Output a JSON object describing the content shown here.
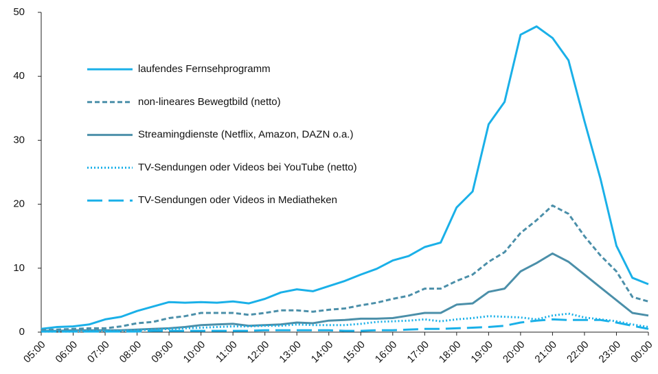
{
  "chart_data": {
    "type": "line",
    "categories": [
      "05:00",
      null,
      "06:00",
      null,
      "07:00",
      null,
      "08:00",
      null,
      "09:00",
      null,
      "10:00",
      null,
      "11:00",
      null,
      "12:00",
      null,
      "13:00",
      null,
      "14:00",
      null,
      "15:00",
      null,
      "16:00",
      null,
      "17:00",
      null,
      "18:00",
      null,
      "19:00",
      null,
      "20:00",
      null,
      "21:00",
      null,
      "22:00",
      null,
      "23:00",
      null,
      "00:00"
    ],
    "series": [
      {
        "name": "laufendes Fernsehprogramm",
        "color": "#1ab0e8",
        "dash": "solid",
        "values": [
          0.5,
          0.8,
          0.9,
          1.2,
          2.0,
          2.4,
          3.3,
          4.0,
          4.7,
          4.6,
          4.7,
          4.6,
          4.8,
          4.5,
          5.2,
          6.2,
          6.7,
          6.4,
          7.2,
          8.0,
          9.0,
          9.9,
          11.2,
          11.9,
          13.3,
          14.0,
          19.5,
          22.0,
          32.5,
          36.0,
          46.5,
          47.8,
          46.0,
          42.5,
          33.0,
          24.0,
          13.5,
          8.5,
          7.5
        ]
      },
      {
        "name": "non-lineares Bewegtbild (netto)",
        "color": "#4b8fa9",
        "dash": "dashed",
        "values": [
          0.3,
          0.4,
          0.5,
          0.6,
          0.6,
          0.9,
          1.4,
          1.6,
          2.2,
          2.5,
          3.0,
          3.0,
          3.0,
          2.7,
          3.0,
          3.4,
          3.4,
          3.2,
          3.5,
          3.7,
          4.2,
          4.6,
          5.2,
          5.7,
          6.8,
          6.8,
          8.0,
          9.0,
          11.0,
          12.5,
          15.5,
          17.5,
          19.8,
          18.5,
          15.0,
          12.0,
          9.5,
          5.5,
          4.8
        ]
      },
      {
        "name": "Streamingdienste (Netflix, Amazon, DAZN o.a.)",
        "color": "#4b8fa9",
        "dash": "solid",
        "values": [
          0.2,
          0.2,
          0.3,
          0.3,
          0.3,
          0.3,
          0.4,
          0.5,
          0.6,
          0.8,
          1.1,
          1.2,
          1.3,
          1.0,
          1.1,
          1.2,
          1.5,
          1.4,
          1.8,
          1.9,
          2.1,
          2.1,
          2.2,
          2.6,
          3.0,
          3.0,
          4.3,
          4.5,
          6.3,
          6.8,
          9.5,
          10.8,
          12.3,
          11.0,
          9.0,
          7.0,
          5.0,
          3.0,
          2.6
        ]
      },
      {
        "name": "TV-Sendungen oder Videos bei YouTube (netto)",
        "color": "#1ab0e8",
        "dash": "dotted",
        "values": [
          0.1,
          0.1,
          0.1,
          0.2,
          0.2,
          0.2,
          0.3,
          0.4,
          0.5,
          0.6,
          0.7,
          0.8,
          0.9,
          0.9,
          1.0,
          1.0,
          1.2,
          1.1,
          1.1,
          1.1,
          1.3,
          1.6,
          1.7,
          1.8,
          2.0,
          1.7,
          2.0,
          2.2,
          2.5,
          2.4,
          2.3,
          2.0,
          2.6,
          2.9,
          2.3,
          2.0,
          1.7,
          1.2,
          0.8
        ]
      },
      {
        "name": "TV-Sendungen oder Videos in Mediatheken",
        "color": "#1ab0e8",
        "dash": "longdash",
        "values": [
          0.1,
          0.1,
          0.1,
          0.1,
          0.1,
          0.1,
          0.1,
          0.2,
          0.2,
          0.2,
          0.2,
          0.2,
          0.2,
          0.2,
          0.3,
          0.3,
          0.3,
          0.3,
          0.3,
          0.2,
          0.2,
          0.3,
          0.3,
          0.4,
          0.5,
          0.5,
          0.6,
          0.7,
          0.8,
          1.0,
          1.5,
          1.8,
          2.0,
          1.9,
          1.9,
          1.9,
          1.5,
          1.0,
          0.5
        ]
      }
    ],
    "ylim": [
      0,
      50
    ],
    "yticks": [
      0,
      10,
      20,
      30,
      40,
      50
    ],
    "grid": false,
    "legend": "upper left"
  }
}
